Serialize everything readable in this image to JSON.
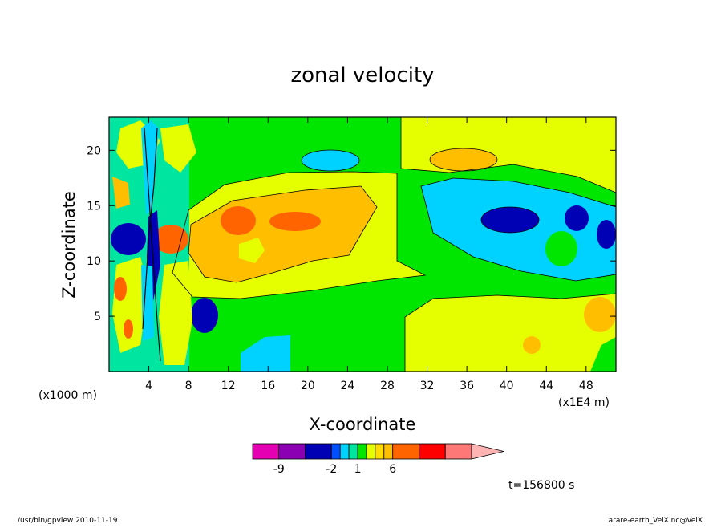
{
  "chart_data": {
    "type": "heatmap",
    "title": "zonal velocity",
    "xlabel": "X-coordinate",
    "ylabel": "Z-coordinate",
    "x_unit_label": "(x1E4 m)",
    "y_unit_label": "(x1000 m)",
    "xlim": [
      0,
      51
    ],
    "ylim": [
      0,
      23
    ],
    "x_ticks": [
      4,
      8,
      12,
      16,
      20,
      24,
      28,
      32,
      36,
      40,
      44,
      48
    ],
    "y_ticks": [
      5,
      10,
      15,
      20
    ],
    "grid": false,
    "time_label": "t=156800 s",
    "colorbar": {
      "levels": [
        -12,
        -9,
        -6,
        -2,
        -1,
        0,
        1,
        2,
        3,
        4,
        6,
        9,
        12
      ],
      "colors": [
        "#e600b4",
        "#8c00b4",
        "#0000b4",
        "#0050ff",
        "#00d2ff",
        "#00e6a0",
        "#00e600",
        "#e6ff00",
        "#ffdc00",
        "#ffbe00",
        "#ff6400",
        "#ff0000",
        "#ff7878",
        "#ffb4b4"
      ],
      "tick_labels": [
        "-9",
        "-2",
        "1",
        "6"
      ],
      "tick_values": [
        -9,
        -2,
        1,
        6
      ]
    }
  },
  "footer": {
    "left": "/usr/bin/gpview  2010-11-19",
    "right": "arare-earth_VelX.nc@VelX"
  }
}
